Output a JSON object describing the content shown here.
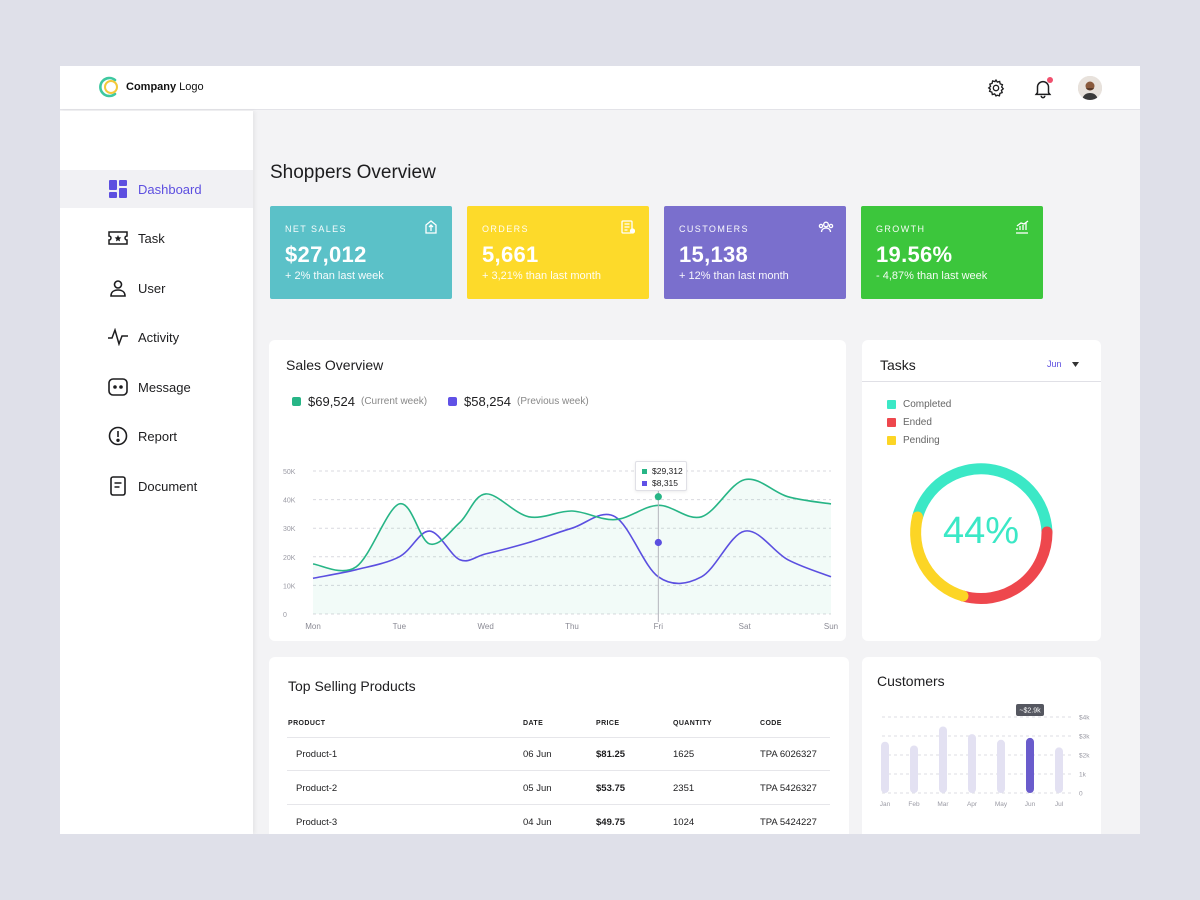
{
  "brand": {
    "logo_bold": "Company",
    "logo_rest": " Logo"
  },
  "header": {
    "icons": [
      "gear-icon",
      "bell-icon"
    ],
    "notification_dot_color": "#f0506e"
  },
  "sidebar": {
    "items": [
      {
        "label": "Dashboard",
        "icon": "dashboard-icon",
        "active": true
      },
      {
        "label": "Task",
        "icon": "ticket-icon",
        "active": false
      },
      {
        "label": "User",
        "icon": "user-icon",
        "active": false
      },
      {
        "label": "Activity",
        "icon": "activity-icon",
        "active": false
      },
      {
        "label": "Message",
        "icon": "message-icon",
        "active": false
      },
      {
        "label": "Report",
        "icon": "alert-icon",
        "active": false
      },
      {
        "label": "Document",
        "icon": "document-icon",
        "active": false
      }
    ]
  },
  "page_title": "Shoppers Overview",
  "stats": [
    {
      "label": "NET SALES",
      "value": "$27,012",
      "sub": "+ 2% than last week",
      "color": "#5bc1c8",
      "icon": "export-icon"
    },
    {
      "label": "ORDERS",
      "value": "5,661",
      "sub": "+ 3,21% than last month",
      "color": "#fdda2a",
      "icon": "receipt-icon"
    },
    {
      "label": "CUSTOMERS",
      "value": "15,138",
      "sub": "+ 12% than last month",
      "color": "#7a6fcd",
      "icon": "group-icon"
    },
    {
      "label": "GROWTH",
      "value": "19.56%",
      "sub": "- 4,87% than last week",
      "color": "#3cc63c",
      "icon": "trend-icon"
    }
  ],
  "sales_overview": {
    "title": "Sales Overview",
    "current": {
      "value": "$69,524",
      "note": "(Current week)",
      "color": "#27b586"
    },
    "previous": {
      "value": "$58,254",
      "note": "(Previous week)",
      "color": "#6051e6"
    },
    "tooltip": {
      "current": "$29,312",
      "previous": "$8,315"
    }
  },
  "chart_data": [
    {
      "type": "line",
      "y_ticks": [
        "50K",
        "40K",
        "30K",
        "20K",
        "10K",
        "0"
      ],
      "ylim": [
        0,
        50000
      ],
      "categories": [
        "Mon",
        "Tue",
        "Wed",
        "Thu",
        "Fri",
        "Sat",
        "Sun"
      ],
      "x": [
        0,
        0.5,
        1,
        1.35,
        1.7,
        2,
        2.5,
        3,
        3.5,
        4,
        4.5,
        5,
        5.5,
        6
      ],
      "series": [
        {
          "values": [
            17500,
            16500,
            38500,
            24500,
            32000,
            42000,
            34000,
            36000,
            33000,
            38000,
            34000,
            47000,
            41000,
            38500
          ],
          "color": "#27b586"
        },
        {
          "values": [
            12500,
            15500,
            20000,
            29000,
            19000,
            21000,
            25000,
            30000,
            34000,
            13000,
            13000,
            29000,
            19000,
            13000
          ],
          "color": "#5b4fe0"
        }
      ],
      "highlight": {
        "category": "Fri",
        "values": [
          41000,
          25000
        ]
      }
    },
    {
      "type": "bar",
      "categories": [
        "Jan",
        "Feb",
        "Mar",
        "Apr",
        "May",
        "Jun",
        "Jul"
      ],
      "values": [
        2700,
        2500,
        3500,
        3100,
        2800,
        2900,
        2400
      ],
      "y_ticks": [
        "$4k",
        "$3k",
        "$2k",
        "1k",
        "0"
      ],
      "ylim": [
        0,
        4000
      ],
      "highlight": {
        "category": "Jun",
        "label": "~$2.9k"
      }
    }
  ],
  "tasks": {
    "title": "Tasks",
    "month": "Jun",
    "legend": [
      {
        "label": "Completed",
        "color": "#3be8c6"
      },
      {
        "label": "Ended",
        "color": "#ee474d"
      },
      {
        "label": "Pending",
        "color": "#fcd525"
      }
    ],
    "percent": "44%"
  },
  "customers": {
    "title": "Customers"
  },
  "top_products": {
    "title": "Top Selling Products",
    "columns": [
      "PRODUCT",
      "DATE",
      "PRICE",
      "QUANTITY",
      "CODE"
    ],
    "rows": [
      [
        "Product-1",
        "06 Jun",
        "$81.25",
        "1625",
        "TPA 6026327"
      ],
      [
        "Product-2",
        "05 Jun",
        "$53.75",
        "2351",
        "TPA 5426327"
      ],
      [
        "Product-3",
        "04 Jun",
        "$49.75",
        "1024",
        "TPA 5424227"
      ]
    ]
  }
}
